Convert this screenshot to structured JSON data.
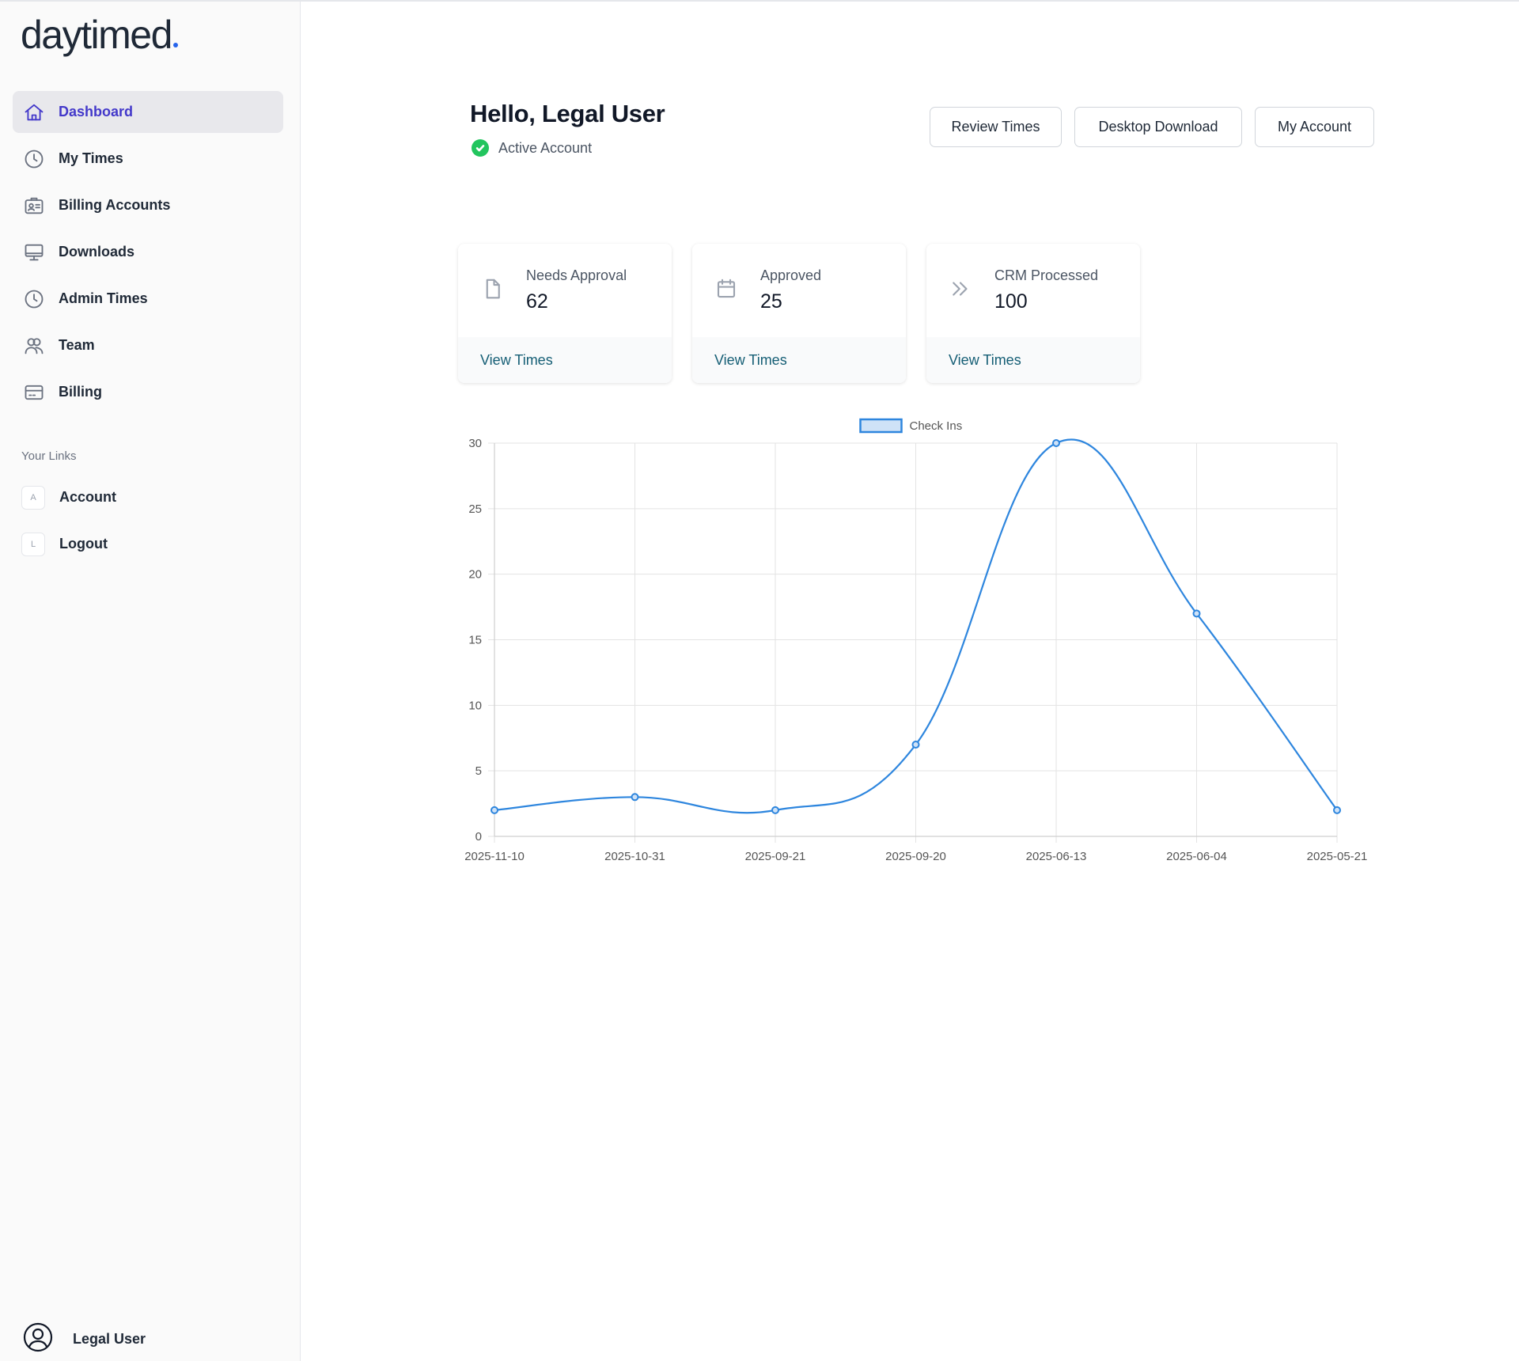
{
  "app": {
    "logo_text": "daytimed"
  },
  "sidebar": {
    "items": [
      {
        "label": "Dashboard",
        "icon": "home-icon",
        "active": true
      },
      {
        "label": "My Times",
        "icon": "clock-icon",
        "active": false
      },
      {
        "label": "Billing Accounts",
        "icon": "id-card-icon",
        "active": false
      },
      {
        "label": "Downloads",
        "icon": "monitor-icon",
        "active": false
      },
      {
        "label": "Admin Times",
        "icon": "clock-icon",
        "active": false
      },
      {
        "label": "Team",
        "icon": "users-icon",
        "active": false
      },
      {
        "label": "Billing",
        "icon": "credit-card-icon",
        "active": false
      }
    ],
    "links_heading": "Your Links",
    "links": [
      {
        "initial": "A",
        "label": "Account"
      },
      {
        "initial": "L",
        "label": "Logout"
      }
    ],
    "user": {
      "name": "Legal User",
      "icon": "user-circle-icon"
    }
  },
  "header": {
    "greeting": "Hello, Legal User",
    "status": "Active Account",
    "status_icon": "check-circle-icon",
    "status_color": "#22c55e"
  },
  "actions": {
    "review": "Review Times",
    "desktop": "Desktop Download",
    "account": "My Account"
  },
  "stats": [
    {
      "label": "Needs Approval",
      "value": "62",
      "link": "View Times",
      "icon": "document-icon"
    },
    {
      "label": "Approved",
      "value": "25",
      "link": "View Times",
      "icon": "calendar-icon"
    },
    {
      "label": "CRM Processed",
      "value": "100",
      "link": "View Times",
      "icon": "chevrons-right-icon"
    }
  ],
  "colors": {
    "accent": "#4338ca",
    "link": "#155e75",
    "series": "#2e86de"
  },
  "chart_data": {
    "type": "line",
    "categories": [
      "2025-11-10",
      "2025-10-31",
      "2025-09-21",
      "2025-09-20",
      "2025-06-13",
      "2025-06-04",
      "2025-05-21"
    ],
    "series": [
      {
        "name": "Check Ins",
        "values": [
          2,
          3,
          2,
          7,
          30,
          17,
          2
        ]
      }
    ],
    "ylim": [
      0,
      30
    ],
    "yticks": [
      0,
      5,
      10,
      15,
      20,
      25,
      30
    ],
    "grid": true,
    "legend": "top-center"
  }
}
